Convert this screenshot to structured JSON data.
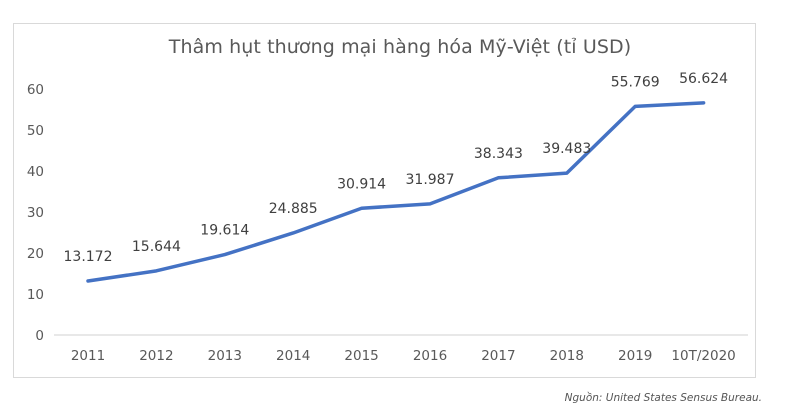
{
  "chart_data": {
    "type": "line",
    "title": "Thâm hụt thương mại hàng hóa Mỹ-Việt (tỉ USD)",
    "xlabel": "",
    "ylabel": "",
    "categories": [
      "2011",
      "2012",
      "2013",
      "2014",
      "2015",
      "2016",
      "2017",
      "2018",
      "2019",
      "10T/2020"
    ],
    "series": [
      {
        "name": "Thâm hụt thương mại",
        "values": [
          13.172,
          15.644,
          19.614,
          24.885,
          30.914,
          31.987,
          38.343,
          39.483,
          55.769,
          56.624
        ],
        "labels": [
          "13.172",
          "15.644",
          "19.614",
          "24.885",
          "30.914",
          "31.987",
          "38.343",
          "39.483",
          "55.769",
          "56.624"
        ],
        "color": "#4472c4"
      }
    ],
    "yticks": [
      "0",
      "10",
      "20",
      "30",
      "40",
      "50",
      "60"
    ],
    "ylim": [
      0,
      60
    ],
    "grid": false,
    "legend": "none"
  },
  "source_note": "Nguồn: United States Sensus Bureau."
}
